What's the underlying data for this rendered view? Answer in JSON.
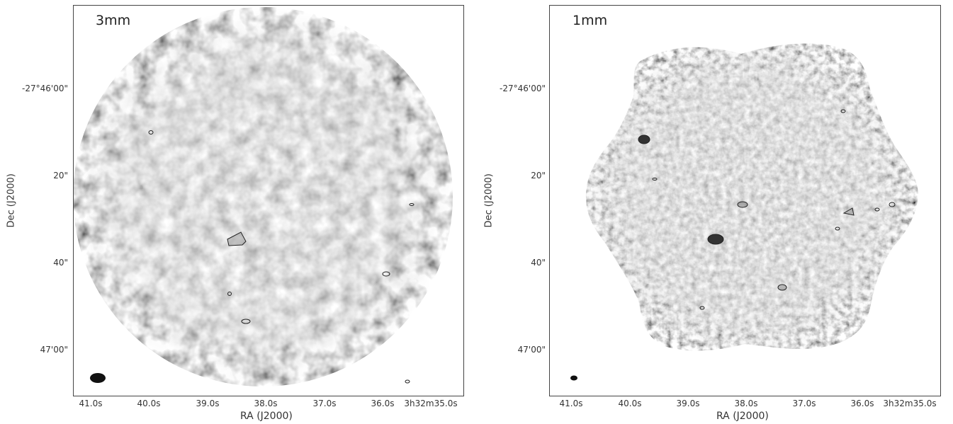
{
  "panels": [
    {
      "band_label": "3mm",
      "y_axis_label": "Dec (J2000)",
      "x_axis_label": "RA (J2000)",
      "y_ticks": [
        "-27°46'00\"",
        "20\"",
        "40\"",
        "47'00\""
      ],
      "x_ticks": [
        "41.0s",
        "40.0s",
        "39.0s",
        "38.0s",
        "37.0s",
        "36.0s",
        "3h32m35.0s"
      ]
    },
    {
      "band_label": "1mm",
      "y_axis_label": "Dec (J2000)",
      "x_axis_label": "RA (J2000)",
      "y_ticks": [
        "-27°46'00\"",
        "20\"",
        "40\"",
        "47'00\""
      ],
      "x_ticks": [
        "41.0s",
        "40.0s",
        "39.0s",
        "38.0s",
        "37.0s",
        "36.0s",
        "3h32m35.0s"
      ]
    }
  ],
  "colors": {
    "frame": "#444444",
    "background": "#ffffff",
    "noise_mid": "#b8b8b8",
    "contour": "#222222"
  }
}
